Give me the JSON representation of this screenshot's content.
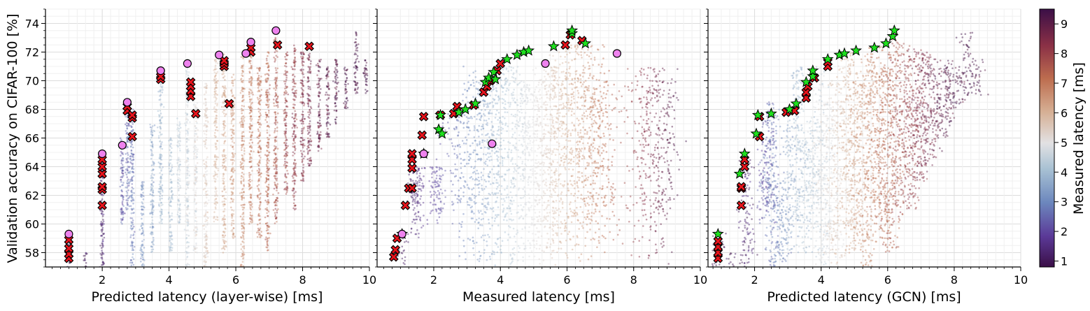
{
  "chart_data": {
    "type": "scatter",
    "ylabel": "Validation accuracy on CIFAR-100 [%]",
    "ylim": [
      57,
      75
    ],
    "yticks": [
      58,
      60,
      62,
      64,
      66,
      68,
      70,
      72,
      74
    ],
    "xlim": [
      0.3,
      10
    ],
    "xticks": [
      2,
      4,
      6,
      8,
      10
    ],
    "colorbar": {
      "label": "Measured latency [ms]",
      "range": [
        0.8,
        9.5
      ],
      "ticks": [
        1,
        2,
        3,
        4,
        5,
        6,
        7,
        8,
        9
      ],
      "colormap": "twilight_shifted (purple-blue-white-orange-maroon)"
    },
    "panels": [
      {
        "xlabel": "Predicted latency (layer-wise) [ms]",
        "pareto_predicted_x": [
          [
            1,
            57.6
          ],
          [
            1,
            57.9
          ],
          [
            1,
            58.3
          ],
          [
            1,
            58.9
          ],
          [
            2,
            61.3
          ],
          [
            2,
            62.4
          ],
          [
            2,
            62.6
          ],
          [
            2,
            63.5
          ],
          [
            2,
            64.0
          ],
          [
            2,
            64.5
          ],
          [
            2.75,
            67.9
          ],
          [
            2.75,
            68.2
          ],
          [
            2.9,
            66.1
          ],
          [
            2.9,
            67.4
          ],
          [
            2.9,
            67.6
          ],
          [
            3.75,
            70.1
          ],
          [
            3.75,
            70.3
          ],
          [
            4.65,
            68.9
          ],
          [
            4.65,
            69.3
          ],
          [
            4.65,
            69.6
          ],
          [
            4.65,
            69.9
          ],
          [
            4.8,
            67.7
          ],
          [
            5.65,
            71.0
          ],
          [
            5.65,
            71.2
          ],
          [
            5.65,
            71.4
          ],
          [
            5.8,
            68.4
          ],
          [
            6.45,
            72.0
          ],
          [
            6.45,
            72.3
          ],
          [
            7.25,
            72.5
          ],
          [
            8.2,
            72.4
          ]
        ],
        "pareto_measured": [
          [
            1,
            59.3
          ],
          [
            2,
            64.9
          ],
          [
            2.6,
            65.5
          ],
          [
            2.75,
            68.5
          ],
          [
            3.75,
            70.7
          ],
          [
            4.55,
            71.2
          ],
          [
            5.5,
            71.8
          ],
          [
            6.3,
            71.9
          ],
          [
            6.45,
            72.7
          ],
          [
            7.2,
            73.5
          ]
        ]
      },
      {
        "xlabel": "Measured latency [ms]",
        "pareto_layerwise": [
          [
            0.8,
            57.7
          ],
          [
            0.85,
            58.2
          ],
          [
            0.9,
            59.0
          ],
          [
            1.15,
            61.3
          ],
          [
            1.25,
            62.5
          ],
          [
            1.35,
            62.5
          ],
          [
            1.35,
            63.9
          ],
          [
            1.35,
            64.5
          ],
          [
            1.35,
            64.9
          ],
          [
            1.65,
            66.2
          ],
          [
            1.7,
            67.5
          ],
          [
            2.2,
            67.6
          ],
          [
            2.6,
            67.7
          ],
          [
            2.7,
            68.2
          ],
          [
            3.2,
            68.3
          ],
          [
            3.5,
            69.2
          ],
          [
            3.6,
            69.6
          ],
          [
            3.7,
            70.0
          ],
          [
            3.9,
            70.7
          ],
          [
            4.0,
            71.2
          ],
          [
            5.95,
            72.5
          ],
          [
            6.45,
            72.8
          ],
          [
            6.1,
            73.2
          ]
        ],
        "pareto_gcn": [
          [
            1.05,
            59.3
          ],
          [
            1.7,
            64.9
          ],
          [
            2.15,
            66.6
          ],
          [
            2.25,
            66.3
          ],
          [
            2.2,
            67.6
          ],
          [
            2.75,
            67.8
          ],
          [
            2.95,
            68.0
          ],
          [
            3.25,
            68.4
          ],
          [
            3.55,
            69.9
          ],
          [
            3.65,
            70.2
          ],
          [
            3.8,
            70.6
          ],
          [
            3.85,
            70.1
          ],
          [
            4.2,
            71.5
          ],
          [
            4.5,
            71.8
          ],
          [
            4.7,
            72.0
          ],
          [
            4.85,
            72.1
          ],
          [
            5.6,
            72.4
          ],
          [
            6.15,
            73.3
          ],
          [
            6.15,
            73.5
          ],
          [
            6.55,
            72.6
          ]
        ],
        "pareto_measured": [
          [
            1.05,
            59.3
          ],
          [
            1.7,
            64.9
          ],
          [
            3.75,
            65.6
          ],
          [
            5.35,
            71.2
          ],
          [
            7.5,
            71.9
          ]
        ]
      },
      {
        "xlabel": "Predicted latency (GCN) [ms]",
        "pareto_layerwise": [
          [
            0.9,
            57.6
          ],
          [
            0.9,
            58.0
          ],
          [
            0.9,
            58.4
          ],
          [
            0.9,
            58.8
          ],
          [
            1.6,
            61.3
          ],
          [
            1.6,
            62.5
          ],
          [
            1.6,
            62.6
          ],
          [
            1.7,
            64.0
          ],
          [
            1.7,
            64.5
          ],
          [
            2.15,
            66.1
          ],
          [
            2.15,
            67.5
          ],
          [
            2.95,
            67.8
          ],
          [
            3.2,
            67.9
          ],
          [
            3.55,
            68.8
          ],
          [
            3.55,
            69.2
          ],
          [
            3.6,
            69.6
          ],
          [
            3.8,
            70.2
          ],
          [
            4.2,
            71.0
          ],
          [
            4.2,
            71.3
          ]
        ],
        "pareto_gcn": [
          [
            0.9,
            59.3
          ],
          [
            1.55,
            63.5
          ],
          [
            1.7,
            64.9
          ],
          [
            2.05,
            66.3
          ],
          [
            2.1,
            67.6
          ],
          [
            2.5,
            67.7
          ],
          [
            3.05,
            68.0
          ],
          [
            3.25,
            68.4
          ],
          [
            3.55,
            69.9
          ],
          [
            3.75,
            70.3
          ],
          [
            3.75,
            70.7
          ],
          [
            4.2,
            71.5
          ],
          [
            4.55,
            71.8
          ],
          [
            4.7,
            71.9
          ],
          [
            5.05,
            72.1
          ],
          [
            5.6,
            72.3
          ],
          [
            5.95,
            72.6
          ],
          [
            6.15,
            73.1
          ],
          [
            6.2,
            73.5
          ]
        ]
      }
    ]
  }
}
